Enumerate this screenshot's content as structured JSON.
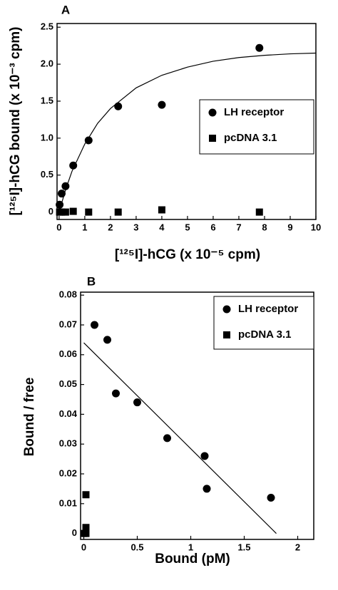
{
  "chart_data": [
    {
      "type": "scatter",
      "title": "A",
      "x_label": "[¹²⁵I]-hCG (x 10⁻⁵ cpm)",
      "y_label": "[¹²⁵I]-hCG bound (x 10⁻³ cpm)",
      "xlim": [
        -0.08,
        10
      ],
      "ylim": [
        -0.1,
        2.55
      ],
      "xticks": [
        0,
        1,
        2,
        3,
        4,
        5,
        6,
        7,
        8,
        9,
        10
      ],
      "yticks": [
        0,
        0.5,
        {
          "value": 1,
          "label": "1.0"
        },
        1.5,
        {
          "value": 2,
          "label": "2.0"
        },
        2.5
      ],
      "legend_position": "right",
      "series": [
        {
          "name": "LH receptor",
          "color": "#000000",
          "marker": "circle",
          "x": [
            0.02,
            0.1,
            0.25,
            0.55,
            1.15,
            2.3,
            4.0,
            7.8
          ],
          "values": [
            0.1,
            0.25,
            0.35,
            0.63,
            0.97,
            1.43,
            1.45,
            2.22
          ]
        },
        {
          "name": "pcDNA 3.1",
          "color": "#000000",
          "marker": "square",
          "x": [
            0.02,
            0.1,
            0.25,
            0.55,
            1.15,
            2.3,
            4.0,
            7.8
          ],
          "values": [
            0.0,
            0.0,
            0.0,
            0.01,
            0.0,
            0.0,
            0.03,
            0.0
          ]
        }
      ],
      "fit": {
        "x": [
          0,
          0.25,
          0.5,
          1,
          1.5,
          2,
          3,
          4,
          5,
          6,
          7,
          8,
          9,
          10
        ],
        "y": [
          0,
          0.3,
          0.55,
          0.92,
          1.2,
          1.4,
          1.68,
          1.85,
          1.96,
          2.04,
          2.09,
          2.12,
          2.14,
          2.15
        ]
      }
    },
    {
      "type": "scatter",
      "title": "B",
      "x_label": "Bound (pM)",
      "y_label": "Bound / free",
      "xlim": [
        -0.03,
        2.15
      ],
      "ylim": [
        -0.002,
        0.081
      ],
      "xticks": [
        0,
        0.5,
        1,
        1.5,
        2
      ],
      "yticks": [
        0,
        0.01,
        0.02,
        0.03,
        0.04,
        0.05,
        0.06,
        0.07,
        0.08
      ],
      "legend_position": "right",
      "series": [
        {
          "name": "LH receptor",
          "color": "#000000",
          "marker": "circle",
          "x": [
            0.1,
            0.22,
            0.3,
            0.5,
            0.78,
            1.13,
            1.15,
            1.75
          ],
          "values": [
            0.07,
            0.065,
            0.047,
            0.044,
            0.032,
            0.026,
            0.015,
            0.012
          ]
        },
        {
          "name": "pcDNA 3.1",
          "color": "#000000",
          "marker": "square",
          "x": [
            0.02,
            0.02,
            0.0,
            0.02
          ],
          "values": [
            0.013,
            0.002,
            0.0,
            0.0
          ]
        }
      ],
      "fit": {
        "x": [
          0,
          1.8
        ],
        "y": [
          0.064,
          0
        ]
      }
    }
  ]
}
